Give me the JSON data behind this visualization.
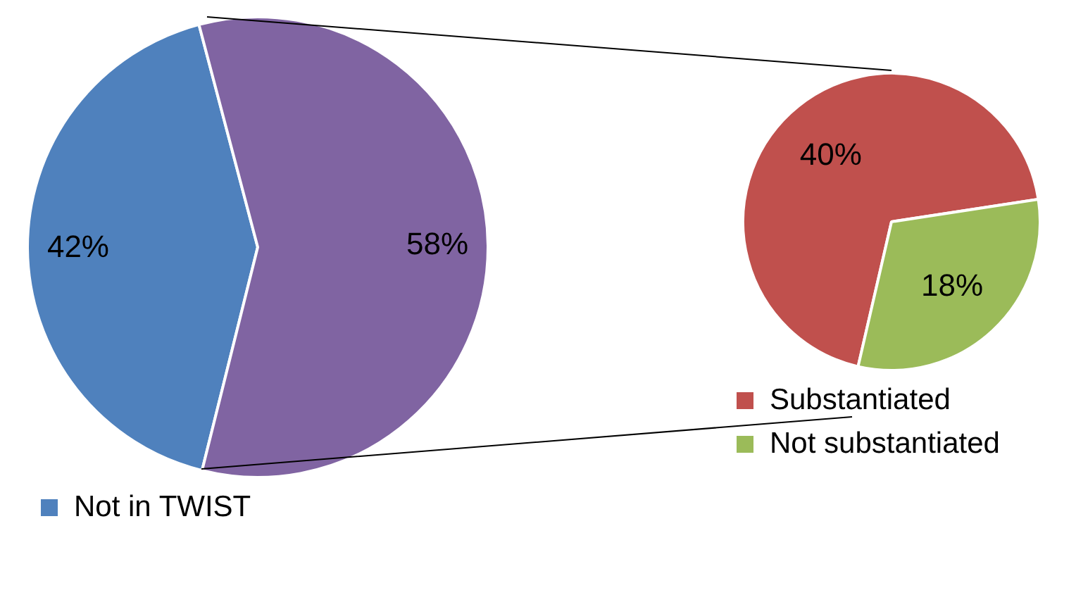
{
  "chart_data": [
    {
      "type": "pie",
      "categories": [
        "Not in TWIST",
        null
      ],
      "values": [
        42,
        58
      ],
      "colors": [
        "#4f81bd",
        "#8064a2"
      ],
      "value_labels": [
        "42%",
        "58%"
      ],
      "legend": "bottom"
    },
    {
      "type": "pie",
      "categories": [
        "Substantiated",
        "Not substantiated"
      ],
      "values": [
        40,
        18
      ],
      "colors": [
        "#c0504d",
        "#9bbb59"
      ],
      "value_labels": [
        "40%",
        "18%"
      ],
      "legend": "bottom"
    }
  ]
}
